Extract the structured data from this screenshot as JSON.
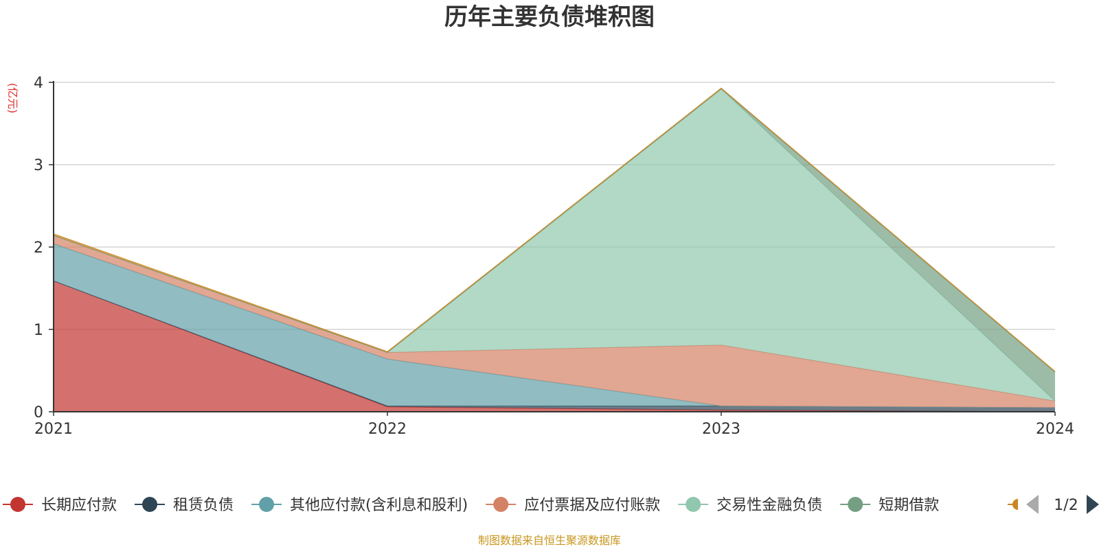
{
  "chart_data": {
    "type": "area",
    "stacked": true,
    "title": "历年主要负债堆积图",
    "unit_label": "(亿元)",
    "x": [
      "2021",
      "2022",
      "2023",
      "2024"
    ],
    "ylim": [
      0,
      4
    ],
    "yticks": [
      "0",
      "1",
      "2",
      "3",
      "4"
    ],
    "grid": true,
    "legend_position": "bottom",
    "series": [
      {
        "name": "长期应付款",
        "color": "#c23531",
        "values": [
          1.59,
          0.06,
          0.02,
          0.0
        ]
      },
      {
        "name": "租赁负债",
        "color": "#2f4554",
        "values": [
          0.0,
          0.01,
          0.05,
          0.05
        ]
      },
      {
        "name": "其他应付款(含利息和股利)",
        "color": "#61a0a8",
        "values": [
          0.45,
          0.57,
          0.0,
          0.0
        ]
      },
      {
        "name": "应付票据及应付账款",
        "color": "#d48265",
        "values": [
          0.1,
          0.08,
          0.74,
          0.08
        ]
      },
      {
        "name": "交易性金融负债",
        "color": "#91c7ae",
        "values": [
          0.0,
          0.0,
          3.11,
          0.0
        ]
      },
      {
        "name": "短期借款",
        "color": "#749f83",
        "values": [
          0.0,
          0.0,
          0.0,
          0.35
        ]
      },
      {
        "name": "",
        "color": "#ca8622",
        "values": [
          0.02,
          0.01,
          0.01,
          0.01
        ]
      }
    ],
    "legend_page": "1/2",
    "source": "制图数据来自恒生聚源数据库"
  }
}
